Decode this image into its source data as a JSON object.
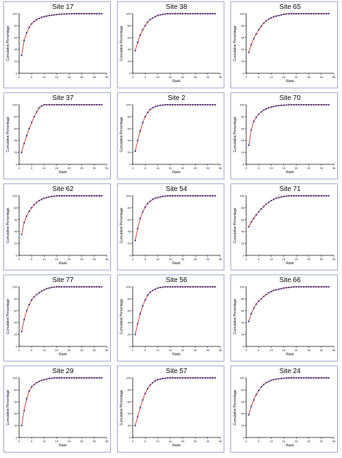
{
  "chart_data": [
    {
      "type": "line",
      "title": "Site 17",
      "xlabel": "",
      "ylabel": "Cumulative Percentage",
      "xlim": [
        0,
        35
      ],
      "ylim": [
        0,
        100
      ],
      "x": [
        1,
        2,
        3,
        4,
        5,
        6,
        7,
        8,
        9,
        10,
        11,
        12,
        13,
        14,
        15,
        16,
        17,
        18,
        19,
        20,
        21,
        22,
        23,
        24,
        25,
        26,
        27,
        28,
        29,
        30,
        31,
        32,
        33
      ],
      "series": [
        {
          "values": [
            30,
            55,
            68,
            77,
            83,
            87,
            90,
            92,
            94,
            95,
            96,
            97,
            97.5,
            98,
            98.5,
            99,
            99.3,
            99.5,
            99.7,
            99.8,
            99.9,
            100,
            100,
            100,
            100,
            100,
            100,
            100,
            100,
            100,
            100,
            100,
            100
          ]
        }
      ]
    },
    {
      "type": "line",
      "title": "Site 38",
      "xlabel": "Rank",
      "ylabel": "Cumulative Percentage",
      "xlim": [
        0,
        35
      ],
      "ylim": [
        0,
        100
      ],
      "x": [
        1,
        2,
        3,
        4,
        5,
        6,
        7,
        8,
        9,
        10,
        11,
        12,
        13,
        14,
        15,
        16,
        17,
        18,
        19,
        20,
        21,
        22,
        23,
        24,
        25,
        26,
        27,
        28,
        29,
        30,
        31,
        32,
        33
      ],
      "series": [
        {
          "values": [
            38,
            52,
            64,
            73,
            80,
            86,
            90,
            93,
            95,
            97,
            98,
            99,
            99.5,
            100,
            100,
            100,
            100,
            100,
            100,
            100,
            100,
            100,
            100,
            100,
            100,
            100,
            100,
            100,
            100,
            100,
            100,
            100,
            100
          ]
        }
      ]
    },
    {
      "type": "line",
      "title": "Site 65",
      "xlabel": "Rank",
      "ylabel": "Cumulative Percentage",
      "xlim": [
        0,
        35
      ],
      "ylim": [
        0,
        100
      ],
      "x": [
        1,
        2,
        3,
        4,
        5,
        6,
        7,
        8,
        9,
        10,
        11,
        12,
        13,
        14,
        15,
        16,
        17,
        18,
        19,
        20,
        21,
        22,
        23,
        24,
        25,
        26,
        27,
        28,
        29,
        30,
        31,
        32,
        33
      ],
      "series": [
        {
          "values": [
            35,
            48,
            58,
            66,
            73,
            79,
            84,
            88,
            91,
            93,
            95,
            96,
            97,
            98,
            99,
            99.5,
            100,
            100,
            100,
            100,
            100,
            100,
            100,
            100,
            100,
            100,
            100,
            100,
            100,
            100,
            100,
            100,
            100
          ]
        }
      ]
    },
    {
      "type": "line",
      "title": "Site 37",
      "xlabel": "Rank",
      "ylabel": "Cumulative Percentage",
      "xlim": [
        0,
        35
      ],
      "ylim": [
        0,
        100
      ],
      "x": [
        1,
        2,
        3,
        4,
        5,
        6,
        7,
        8,
        9,
        10,
        11,
        12,
        13,
        14,
        15,
        16,
        17,
        18,
        19,
        20,
        21,
        22,
        23,
        24,
        25,
        26,
        27,
        28,
        29,
        30,
        31,
        32,
        33
      ],
      "series": [
        {
          "values": [
            20,
            35,
            48,
            60,
            70,
            80,
            88,
            95,
            98,
            100,
            100,
            100,
            100,
            100,
            100,
            100,
            100,
            100,
            100,
            100,
            100,
            100,
            100,
            100,
            100,
            100,
            100,
            100,
            100,
            100,
            100,
            100,
            100
          ]
        }
      ]
    },
    {
      "type": "line",
      "title": "Site 2",
      "xlabel": "Rank",
      "ylabel": "Cumulative Percentage",
      "xlim": [
        0,
        35
      ],
      "ylim": [
        0,
        100
      ],
      "x": [
        1,
        2,
        3,
        4,
        5,
        6,
        7,
        8,
        9,
        10,
        11,
        12,
        13,
        14,
        15,
        16,
        17,
        18,
        19,
        20,
        21,
        22,
        23,
        24,
        25,
        26,
        27,
        28,
        29,
        30,
        31,
        32,
        33
      ],
      "series": [
        {
          "values": [
            22,
            40,
            56,
            70,
            80,
            87,
            92,
            95,
            97,
            98,
            99,
            99.5,
            100,
            100,
            100,
            100,
            100,
            100,
            100,
            100,
            100,
            100,
            100,
            100,
            100,
            100,
            100,
            100,
            100,
            100,
            100,
            100,
            100
          ]
        }
      ]
    },
    {
      "type": "line",
      "title": "Site 70",
      "xlabel": "Rank",
      "ylabel": "Cumulative Percentage",
      "xlim": [
        0,
        35
      ],
      "ylim": [
        0,
        100
      ],
      "x": [
        1,
        2,
        3,
        4,
        5,
        6,
        7,
        8,
        9,
        10,
        11,
        12,
        13,
        14,
        15,
        16,
        17,
        18,
        19,
        20,
        21,
        22,
        23,
        24,
        25,
        26,
        27,
        28,
        29,
        30,
        31,
        32,
        33
      ],
      "series": [
        {
          "values": [
            32,
            58,
            72,
            79,
            84,
            88,
            91,
            93,
            95,
            96,
            97,
            98,
            98.5,
            99,
            99.3,
            99.6,
            99.8,
            100,
            100,
            100,
            100,
            100,
            100,
            100,
            100,
            100,
            100,
            100,
            100,
            100,
            100,
            100,
            100
          ]
        }
      ]
    },
    {
      "type": "line",
      "title": "Site 62",
      "xlabel": "Rank",
      "ylabel": "Cumulative Percentage",
      "xlim": [
        0,
        35
      ],
      "ylim": [
        0,
        100
      ],
      "x": [
        1,
        2,
        3,
        4,
        5,
        6,
        7,
        8,
        9,
        10,
        11,
        12,
        13,
        14,
        15,
        16,
        17,
        18,
        19,
        20,
        21,
        22,
        23,
        24,
        25,
        26,
        27,
        28,
        29,
        30,
        31,
        32,
        33
      ],
      "series": [
        {
          "values": [
            35,
            55,
            66,
            74,
            80,
            85,
            89,
            92,
            94,
            96,
            97,
            98,
            99,
            99.5,
            100,
            100,
            100,
            100,
            100,
            100,
            100,
            100,
            100,
            100,
            100,
            100,
            100,
            100,
            100,
            100,
            100,
            100,
            100
          ]
        }
      ]
    },
    {
      "type": "line",
      "title": "Site 54",
      "xlabel": "Rank",
      "ylabel": "Cumulative Percentage",
      "xlim": [
        0,
        35
      ],
      "ylim": [
        0,
        100
      ],
      "x": [
        1,
        2,
        3,
        4,
        5,
        6,
        7,
        8,
        9,
        10,
        11,
        12,
        13,
        14,
        15,
        16,
        17,
        18,
        19,
        20,
        21,
        22,
        23,
        24,
        25,
        26,
        27,
        28,
        29,
        30,
        31,
        32,
        33
      ],
      "series": [
        {
          "values": [
            25,
            45,
            62,
            73,
            81,
            87,
            91,
            94,
            96,
            97,
            98,
            99,
            99.5,
            100,
            100,
            100,
            100,
            100,
            100,
            100,
            100,
            100,
            100,
            100,
            100,
            100,
            100,
            100,
            100,
            100,
            100,
            100,
            100
          ]
        }
      ]
    },
    {
      "type": "line",
      "title": "Site 71",
      "xlabel": "Rank",
      "ylabel": "Cumulative Percentage",
      "xlim": [
        0,
        35
      ],
      "ylim": [
        0,
        100
      ],
      "x": [
        1,
        2,
        3,
        4,
        5,
        6,
        7,
        8,
        9,
        10,
        11,
        12,
        13,
        14,
        15,
        16,
        17,
        18,
        19,
        20,
        21,
        22,
        23,
        24,
        25,
        26,
        27,
        28,
        29,
        30,
        31,
        32,
        33
      ],
      "series": [
        {
          "values": [
            48,
            56,
            62,
            68,
            73,
            78,
            82,
            86,
            89,
            92,
            94,
            96,
            97,
            98,
            99,
            99.5,
            100,
            100,
            100,
            100,
            100,
            100,
            100,
            100,
            100,
            100,
            100,
            100,
            100,
            100,
            100,
            100,
            100
          ]
        }
      ]
    },
    {
      "type": "line",
      "title": "Site 77",
      "xlabel": "Rank",
      "ylabel": "Cumulative Percentage",
      "xlim": [
        0,
        35
      ],
      "ylim": [
        0,
        100
      ],
      "x": [
        1,
        2,
        3,
        4,
        5,
        6,
        7,
        8,
        9,
        10,
        11,
        12,
        13,
        14,
        15,
        16,
        17,
        18,
        19,
        20,
        21,
        22,
        23,
        24,
        25,
        26,
        27,
        28,
        29,
        30,
        31,
        32,
        33
      ],
      "series": [
        {
          "values": [
            25,
            45,
            60,
            70,
            78,
            83,
            87,
            90,
            93,
            95,
            97,
            98,
            99,
            99.5,
            100,
            100,
            100,
            100,
            100,
            100,
            100,
            100,
            100,
            100,
            100,
            100,
            100,
            100,
            100,
            100,
            100,
            100,
            100
          ]
        }
      ]
    },
    {
      "type": "line",
      "title": "Site 56",
      "xlabel": "Rank",
      "ylabel": "Cumulative Percentage",
      "xlim": [
        0,
        35
      ],
      "ylim": [
        0,
        100
      ],
      "x": [
        1,
        2,
        3,
        4,
        5,
        6,
        7,
        8,
        9,
        10,
        11,
        12,
        13,
        14,
        15,
        16,
        17,
        18,
        19,
        20,
        21,
        22,
        23,
        24,
        25,
        26,
        27,
        28,
        29,
        30,
        31,
        32,
        33
      ],
      "series": [
        {
          "values": [
            20,
            38,
            55,
            68,
            78,
            86,
            91,
            94,
            96,
            98,
            99,
            99.5,
            100,
            100,
            100,
            100,
            100,
            100,
            100,
            100,
            100,
            100,
            100,
            100,
            100,
            100,
            100,
            100,
            100,
            100,
            100,
            100,
            100
          ]
        }
      ]
    },
    {
      "type": "line",
      "title": "Site 66",
      "xlabel": "Rank",
      "ylabel": "Cumulative Percentage",
      "xlim": [
        0,
        35
      ],
      "ylim": [
        0,
        100
      ],
      "x": [
        1,
        2,
        3,
        4,
        5,
        6,
        7,
        8,
        9,
        10,
        11,
        12,
        13,
        14,
        15,
        16,
        17,
        18,
        19,
        20,
        21,
        22,
        23,
        24,
        25,
        26,
        27,
        28,
        29,
        30,
        31,
        32,
        33
      ],
      "series": [
        {
          "values": [
            42,
            55,
            64,
            71,
            76,
            80,
            84,
            87,
            90,
            92,
            94,
            95,
            96,
            97,
            98,
            98.5,
            99,
            99.5,
            100,
            100,
            100,
            100,
            100,
            100,
            100,
            100,
            100,
            100,
            100,
            100,
            100,
            100,
            100
          ]
        }
      ]
    },
    {
      "type": "line",
      "title": "Site 29",
      "xlabel": "Rank",
      "ylabel": "Cumulative Percentage",
      "xlim": [
        0,
        35
      ],
      "ylim": [
        0,
        100
      ],
      "x": [
        1,
        2,
        3,
        4,
        5,
        6,
        7,
        8,
        9,
        10,
        11,
        12,
        13,
        14,
        15,
        16,
        17,
        18,
        19,
        20,
        21,
        22,
        23,
        24,
        25,
        26,
        27,
        28,
        29,
        30,
        31,
        32,
        33
      ],
      "series": [
        {
          "values": [
            20,
            45,
            65,
            78,
            85,
            89,
            92,
            94,
            96,
            97,
            98,
            99,
            99.5,
            100,
            100,
            100,
            100,
            100,
            100,
            100,
            100,
            100,
            100,
            100,
            100,
            100,
            100,
            100,
            100,
            100,
            100,
            100,
            100
          ]
        }
      ]
    },
    {
      "type": "line",
      "title": "Site 57",
      "xlabel": "Rank",
      "ylabel": "Cumulative Percentage",
      "xlim": [
        0,
        35
      ],
      "ylim": [
        0,
        100
      ],
      "x": [
        1,
        2,
        3,
        4,
        5,
        6,
        7,
        8,
        9,
        10,
        11,
        12,
        13,
        14,
        15,
        16,
        17,
        18,
        19,
        20,
        21,
        22,
        23,
        24,
        25,
        26,
        27,
        28,
        29,
        30,
        31,
        32,
        33
      ],
      "series": [
        {
          "values": [
            20,
            35,
            50,
            63,
            74,
            82,
            88,
            92,
            95,
            97,
            98,
            99,
            99.5,
            100,
            100,
            100,
            100,
            100,
            100,
            100,
            100,
            100,
            100,
            100,
            100,
            100,
            100,
            100,
            100,
            100,
            100,
            100,
            100
          ]
        }
      ]
    },
    {
      "type": "line",
      "title": "Site 24",
      "xlabel": "Rank",
      "ylabel": "Cumulative Percentage",
      "xlim": [
        0,
        35
      ],
      "ylim": [
        0,
        100
      ],
      "x": [
        1,
        2,
        3,
        4,
        5,
        6,
        7,
        8,
        9,
        10,
        11,
        12,
        13,
        14,
        15,
        16,
        17,
        18,
        19,
        20,
        21,
        22,
        23,
        24,
        25,
        26,
        27,
        28,
        29,
        30,
        31,
        32,
        33
      ],
      "series": [
        {
          "values": [
            38,
            52,
            63,
            72,
            79,
            85,
            89,
            92,
            94,
            96,
            97,
            98,
            98.5,
            99,
            99.5,
            100,
            100,
            100,
            100,
            100,
            100,
            100,
            100,
            100,
            100,
            100,
            100,
            100,
            100,
            100,
            100,
            100,
            100
          ]
        }
      ]
    }
  ],
  "axis": {
    "yticks": [
      "0",
      "20",
      "40",
      "60",
      "80",
      "100"
    ],
    "xticks": [
      "0",
      "5",
      "10",
      "15",
      "20",
      "25",
      "30",
      "35"
    ]
  },
  "colors": {
    "line": "#cc2222",
    "marker": "#1a1a80",
    "axis": "#000000",
    "frame": "#9aa2c8"
  }
}
